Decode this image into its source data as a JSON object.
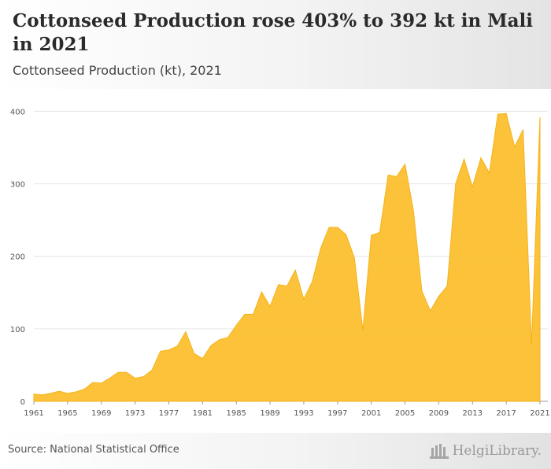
{
  "header": {
    "title": "Cottonseed Production rose 403% to 392 kt in Mali in 2021",
    "subtitle": "Cottonseed Production (kt), 2021"
  },
  "footer": {
    "source": "Source: National Statistical Office",
    "logo": "HelgiLibrary."
  },
  "colors": {
    "area_fill": "#fbbf2f",
    "area_stroke": "#f5b31a",
    "grid": "#e6e6e6",
    "axis": "#999999"
  },
  "chart_data": {
    "type": "area",
    "title": "",
    "xlabel": "",
    "ylabel": "",
    "x": [
      1961,
      1962,
      1963,
      1964,
      1965,
      1966,
      1967,
      1968,
      1969,
      1970,
      1971,
      1972,
      1973,
      1974,
      1975,
      1976,
      1977,
      1978,
      1979,
      1980,
      1981,
      1982,
      1983,
      1984,
      1985,
      1986,
      1987,
      1988,
      1989,
      1990,
      1991,
      1992,
      1993,
      1994,
      1995,
      1996,
      1997,
      1998,
      1999,
      2000,
      2001,
      2002,
      2003,
      2004,
      2005,
      2006,
      2007,
      2008,
      2009,
      2010,
      2011,
      2012,
      2013,
      2014,
      2015,
      2016,
      2017,
      2018,
      2019,
      2020,
      2021
    ],
    "values": [
      10,
      9,
      11,
      14,
      11,
      13,
      17,
      26,
      25,
      32,
      40,
      40,
      32,
      34,
      43,
      69,
      71,
      76,
      96,
      66,
      59,
      77,
      85,
      88,
      105,
      120,
      120,
      151,
      131,
      161,
      159,
      181,
      141,
      165,
      211,
      240,
      240,
      230,
      198,
      98,
      229,
      233,
      312,
      310,
      327,
      263,
      152,
      125,
      145,
      159,
      300,
      334,
      296,
      336,
      315,
      396,
      397,
      351,
      375,
      78,
      392
    ],
    "x_tick_labels": [
      "1961",
      "1965",
      "1969",
      "1973",
      "1977",
      "1981",
      "1985",
      "1989",
      "1993",
      "1997",
      "2001",
      "2005",
      "2009",
      "2013",
      "2017",
      "2021"
    ],
    "y_tick_labels": [
      "0",
      "100",
      "200",
      "300",
      "400"
    ],
    "ylim": [
      0,
      420
    ],
    "grid": true,
    "legend": "none"
  }
}
